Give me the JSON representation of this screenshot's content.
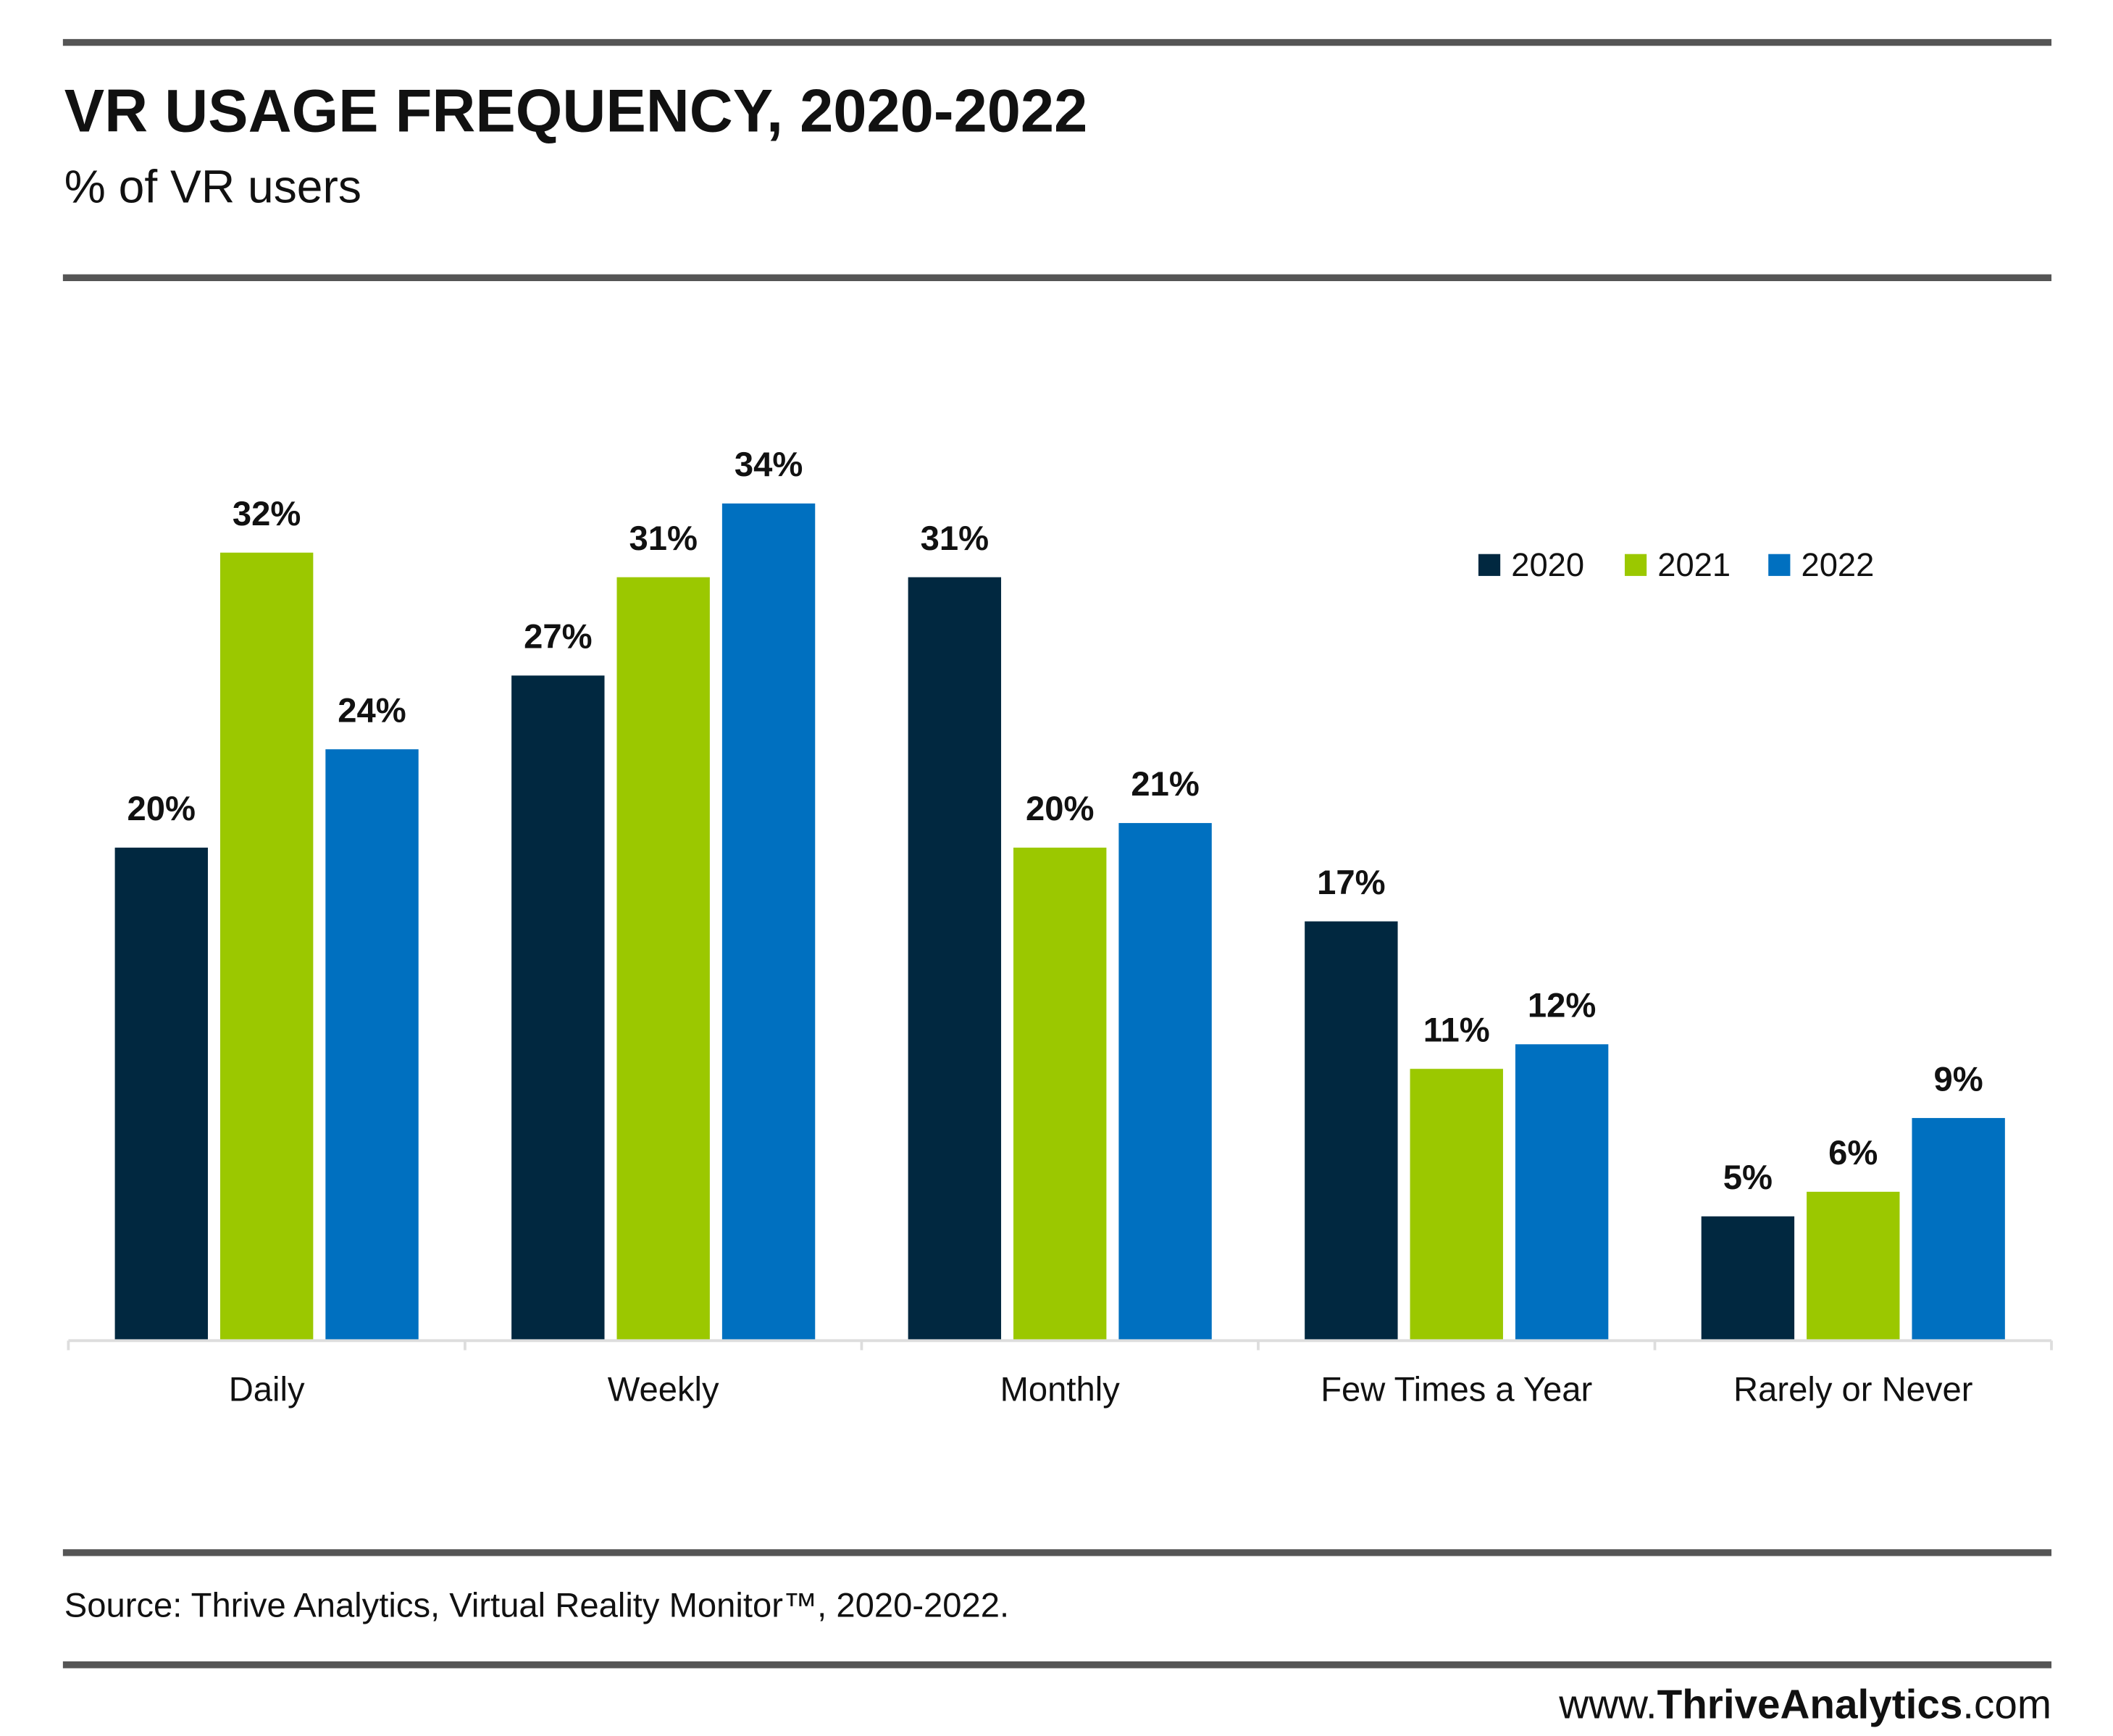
{
  "chart_data": {
    "type": "bar",
    "title": "VR USAGE FREQUENCY, 2020-2022",
    "subtitle": "% of VR users",
    "source": "Source: Thrive Analytics, Virtual Reality Monitor™, 2020-2022.",
    "website": [
      "www.",
      "ThriveAnalytics",
      ".com"
    ],
    "categories": [
      "Daily",
      "Weekly",
      "Monthly",
      "Few Times a Year",
      "Rarely or Never"
    ],
    "series": [
      {
        "name": "2020",
        "color": "#012840",
        "values": [
          20,
          27,
          31,
          17,
          5
        ],
        "value_labels": [
          "20%",
          "27%",
          "31%",
          "17%",
          "5%"
        ]
      },
      {
        "name": "2021",
        "color": "#9bc800",
        "values": [
          32,
          31,
          20,
          11,
          6
        ],
        "value_labels": [
          "32%",
          "31%",
          "20%",
          "11%",
          "6%"
        ]
      },
      {
        "name": "2022",
        "color": "#0070c0",
        "values": [
          24,
          34,
          21,
          12,
          9
        ],
        "value_labels": [
          "24%",
          "34%",
          "21%",
          "12%",
          "9%"
        ]
      }
    ],
    "legend": "top-right"
  }
}
